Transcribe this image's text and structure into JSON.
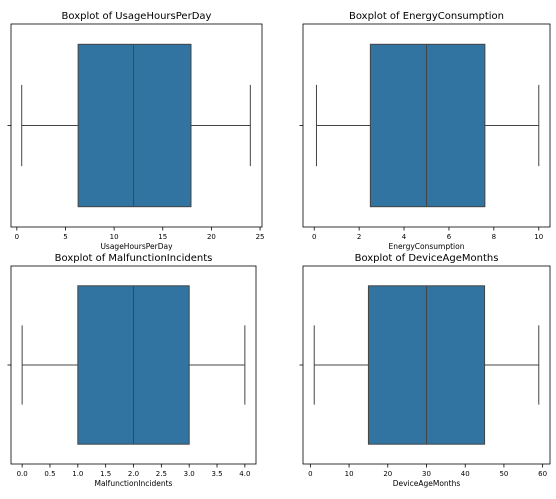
{
  "style": {
    "box_color": "#3274a1",
    "line_color": "#444444",
    "axis_color": "#000000"
  },
  "chart_data": [
    {
      "type": "box",
      "title": "Boxplot of UsageHoursPerDay",
      "xlabel": "UsageHoursPerDay",
      "xlim": [
        -0.6,
        25.2
      ],
      "ticks": [
        0,
        5,
        10,
        15,
        20,
        25
      ],
      "tick_labels": [
        "0",
        "5",
        "10",
        "15",
        "20",
        "25"
      ],
      "stats": {
        "whisker_low": 0.5,
        "q1": 6.3,
        "median": 12.0,
        "q3": 17.9,
        "whisker_high": 24.0
      }
    },
    {
      "type": "box",
      "title": "Boxplot of EnergyConsumption",
      "xlabel": "EnergyConsumption",
      "xlim": [
        -0.5,
        10.5
      ],
      "ticks": [
        0,
        2,
        4,
        6,
        8,
        10
      ],
      "tick_labels": [
        "0",
        "2",
        "4",
        "6",
        "8",
        "10"
      ],
      "stats": {
        "whisker_low": 0.1,
        "q1": 2.5,
        "median": 5.0,
        "q3": 7.6,
        "whisker_high": 10.0
      }
    },
    {
      "type": "box",
      "title": "Boxplot of MalfunctionIncidents",
      "xlabel": "MalfunctionIncidents",
      "xlim": [
        -0.2,
        4.2
      ],
      "ticks": [
        0,
        0.5,
        1,
        1.5,
        2,
        2.5,
        3,
        3.5,
        4
      ],
      "tick_labels": [
        "0.0",
        "0.5",
        "1.0",
        "1.5",
        "2.0",
        "2.5",
        "3.0",
        "3.5",
        "4.0"
      ],
      "stats": {
        "whisker_low": 0,
        "q1": 1,
        "median": 2,
        "q3": 3,
        "whisker_high": 4
      }
    },
    {
      "type": "box",
      "title": "Boxplot of DeviceAgeMonths",
      "xlabel": "DeviceAgeMonths",
      "xlim": [
        -1.9,
        61.9
      ],
      "ticks": [
        0,
        10,
        20,
        30,
        40,
        50,
        60
      ],
      "tick_labels": [
        "0",
        "10",
        "20",
        "30",
        "40",
        "50",
        "60"
      ],
      "stats": {
        "whisker_low": 1,
        "q1": 15,
        "median": 30,
        "q3": 45,
        "whisker_high": 59
      }
    }
  ]
}
